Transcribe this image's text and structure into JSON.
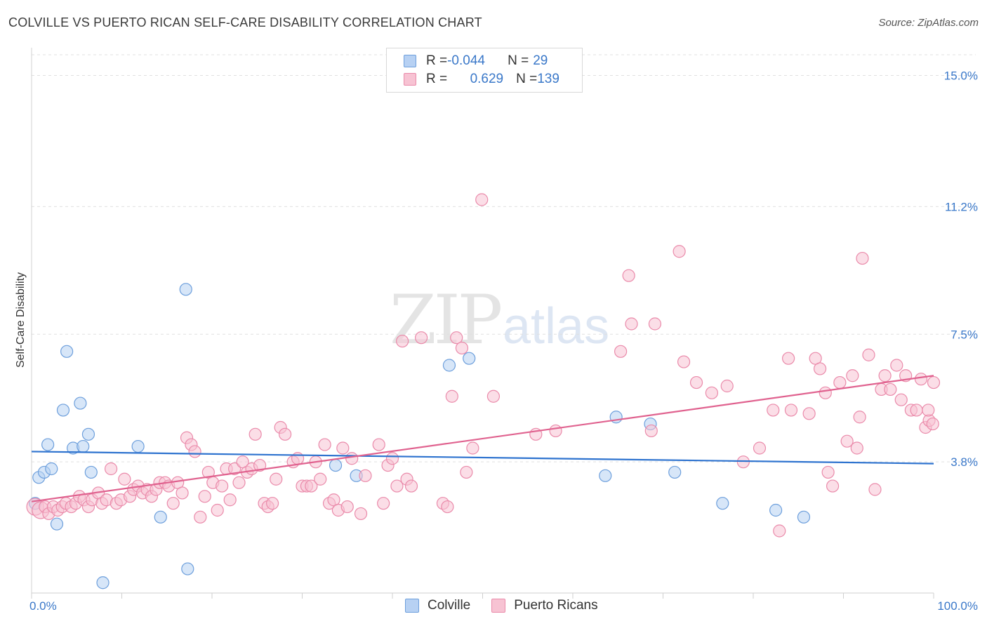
{
  "title": "COLVILLE VS PUERTO RICAN SELF-CARE DISABILITY CORRELATION CHART",
  "source": "Source: ZipAtlas.com",
  "watermark": {
    "zip": "ZIP",
    "atlas": "atlas"
  },
  "legend": {
    "rows": [
      {
        "r_label": "R = ",
        "r_value": "-0.044",
        "n_label": "N = ",
        "n_value": "29"
      },
      {
        "r_label": "R = ",
        "r_value": "0.629",
        "n_label": "N = ",
        "n_value": "139"
      }
    ]
  },
  "bottom_legend": {
    "colville": "Colville",
    "puerto_ricans": "Puerto Ricans"
  },
  "colors": {
    "colville_fill": "#b7d1f3",
    "colville_stroke": "#6d9fdc",
    "colville_line": "#2e73cf",
    "pr_fill": "#f7c3d3",
    "pr_stroke": "#ea8aaa",
    "pr_line": "#e0628f",
    "grid": "#e0e0e0",
    "tick_text": "#3a78c9"
  },
  "chart_data": {
    "type": "scatter",
    "title": "COLVILLE VS PUERTO RICAN SELF-CARE DISABILITY CORRELATION CHART",
    "xlabel": "",
    "ylabel": "Self-Care Disability",
    "xlim": [
      0,
      100
    ],
    "ylim": [
      0,
      15.6
    ],
    "x_tick_labels": [
      "0.0%",
      "100.0%"
    ],
    "y_ticks": [
      3.8,
      7.5,
      11.2,
      15.0
    ],
    "y_tick_labels": [
      "3.8%",
      "7.5%",
      "11.2%",
      "15.0%"
    ],
    "grid": true,
    "legend_position": "top-center",
    "series": [
      {
        "name": "Colville",
        "r": -0.044,
        "n": 29,
        "trend": [
          [
            0,
            4.1
          ],
          [
            100,
            3.75
          ]
        ],
        "points": [
          [
            0.4,
            2.6
          ],
          [
            0.8,
            3.35
          ],
          [
            1.4,
            3.5
          ],
          [
            1.8,
            4.3
          ],
          [
            2.2,
            3.6
          ],
          [
            2.8,
            2.0
          ],
          [
            3.5,
            5.3
          ],
          [
            3.9,
            7.0
          ],
          [
            4.6,
            4.2
          ],
          [
            5.4,
            5.5
          ],
          [
            5.7,
            4.25
          ],
          [
            6.3,
            4.6
          ],
          [
            6.6,
            3.5
          ],
          [
            7.9,
            0.3
          ],
          [
            11.8,
            4.25
          ],
          [
            14.3,
            2.2
          ],
          [
            17.1,
            8.8
          ],
          [
            17.3,
            0.7
          ],
          [
            33.7,
            3.7
          ],
          [
            36.0,
            3.4
          ],
          [
            46.3,
            6.6
          ],
          [
            48.5,
            6.8
          ],
          [
            64.8,
            5.1
          ],
          [
            63.6,
            3.4
          ],
          [
            68.6,
            4.9
          ],
          [
            71.3,
            3.5
          ],
          [
            76.6,
            2.6
          ],
          [
            82.5,
            2.4
          ],
          [
            85.6,
            2.2
          ]
        ]
      },
      {
        "name": "Puerto Ricans",
        "r": 0.629,
        "n": 139,
        "trend": [
          [
            0,
            2.65
          ],
          [
            100,
            6.3
          ]
        ],
        "points": [
          [
            0.4,
            2.5
          ],
          [
            1.0,
            2.4
          ],
          [
            1.5,
            2.5
          ],
          [
            1.9,
            2.3
          ],
          [
            2.4,
            2.5
          ],
          [
            2.9,
            2.4
          ],
          [
            3.4,
            2.5
          ],
          [
            3.8,
            2.6
          ],
          [
            4.4,
            2.5
          ],
          [
            4.9,
            2.6
          ],
          [
            5.3,
            2.8
          ],
          [
            5.8,
            2.7
          ],
          [
            6.3,
            2.5
          ],
          [
            6.7,
            2.7
          ],
          [
            7.4,
            2.9
          ],
          [
            7.8,
            2.6
          ],
          [
            8.3,
            2.7
          ],
          [
            8.8,
            3.6
          ],
          [
            9.4,
            2.6
          ],
          [
            9.9,
            2.7
          ],
          [
            10.3,
            3.3
          ],
          [
            10.9,
            2.8
          ],
          [
            11.3,
            3.0
          ],
          [
            11.8,
            3.1
          ],
          [
            12.3,
            2.9
          ],
          [
            12.8,
            3.0
          ],
          [
            13.3,
            2.8
          ],
          [
            13.8,
            3.0
          ],
          [
            14.2,
            3.2
          ],
          [
            14.8,
            3.2
          ],
          [
            15.2,
            3.1
          ],
          [
            15.7,
            2.6
          ],
          [
            16.2,
            3.2
          ],
          [
            16.7,
            2.9
          ],
          [
            17.2,
            4.5
          ],
          [
            17.7,
            4.3
          ],
          [
            18.1,
            4.1
          ],
          [
            18.7,
            2.2
          ],
          [
            19.2,
            2.8
          ],
          [
            19.6,
            3.5
          ],
          [
            20.1,
            3.2
          ],
          [
            20.6,
            2.4
          ],
          [
            21.1,
            3.1
          ],
          [
            21.6,
            3.6
          ],
          [
            22.0,
            2.7
          ],
          [
            22.5,
            3.6
          ],
          [
            23.0,
            3.2
          ],
          [
            23.4,
            3.8
          ],
          [
            23.9,
            3.5
          ],
          [
            24.4,
            3.6
          ],
          [
            24.8,
            4.6
          ],
          [
            25.3,
            3.7
          ],
          [
            25.8,
            2.6
          ],
          [
            26.2,
            2.5
          ],
          [
            26.7,
            2.6
          ],
          [
            27.1,
            3.3
          ],
          [
            27.6,
            4.8
          ],
          [
            28.1,
            4.6
          ],
          [
            29.0,
            3.8
          ],
          [
            29.5,
            3.9
          ],
          [
            30.0,
            3.1
          ],
          [
            30.5,
            3.1
          ],
          [
            31.0,
            3.1
          ],
          [
            31.5,
            3.8
          ],
          [
            32.0,
            3.3
          ],
          [
            32.5,
            4.3
          ],
          [
            33.0,
            2.6
          ],
          [
            33.5,
            2.7
          ],
          [
            34.0,
            2.4
          ],
          [
            34.5,
            4.2
          ],
          [
            35.0,
            2.5
          ],
          [
            35.5,
            3.9
          ],
          [
            36.5,
            2.3
          ],
          [
            37.0,
            3.4
          ],
          [
            38.5,
            4.3
          ],
          [
            39.0,
            2.6
          ],
          [
            39.5,
            3.7
          ],
          [
            40.0,
            3.9
          ],
          [
            40.5,
            3.1
          ],
          [
            41.1,
            7.3
          ],
          [
            41.6,
            3.3
          ],
          [
            42.1,
            3.1
          ],
          [
            43.2,
            7.4
          ],
          [
            45.6,
            2.6
          ],
          [
            46.1,
            2.5
          ],
          [
            46.6,
            5.7
          ],
          [
            47.1,
            7.4
          ],
          [
            47.7,
            7.1
          ],
          [
            48.2,
            3.5
          ],
          [
            48.9,
            4.2
          ],
          [
            49.9,
            11.4
          ],
          [
            51.2,
            5.7
          ],
          [
            55.9,
            4.6
          ],
          [
            58.1,
            4.7
          ],
          [
            65.3,
            7.0
          ],
          [
            66.2,
            9.2
          ],
          [
            66.5,
            7.8
          ],
          [
            68.7,
            4.7
          ],
          [
            69.1,
            7.8
          ],
          [
            71.8,
            9.9
          ],
          [
            72.3,
            6.7
          ],
          [
            73.7,
            6.1
          ],
          [
            75.4,
            5.8
          ],
          [
            77.1,
            6.0
          ],
          [
            78.9,
            3.8
          ],
          [
            80.7,
            4.2
          ],
          [
            82.2,
            5.3
          ],
          [
            82.9,
            1.8
          ],
          [
            83.9,
            6.8
          ],
          [
            84.2,
            5.3
          ],
          [
            86.2,
            5.2
          ],
          [
            86.9,
            6.8
          ],
          [
            87.4,
            6.5
          ],
          [
            88.0,
            5.8
          ],
          [
            88.3,
            3.5
          ],
          [
            88.8,
            3.1
          ],
          [
            89.6,
            6.1
          ],
          [
            90.4,
            4.4
          ],
          [
            91.0,
            6.3
          ],
          [
            91.5,
            4.2
          ],
          [
            91.8,
            5.1
          ],
          [
            92.1,
            9.7
          ],
          [
            92.8,
            6.9
          ],
          [
            93.5,
            3.0
          ],
          [
            94.2,
            5.9
          ],
          [
            94.6,
            6.3
          ],
          [
            95.2,
            5.9
          ],
          [
            95.9,
            6.6
          ],
          [
            96.4,
            5.6
          ],
          [
            96.9,
            6.3
          ],
          [
            97.5,
            5.3
          ],
          [
            98.1,
            5.3
          ],
          [
            98.6,
            6.2
          ],
          [
            99.1,
            4.8
          ],
          [
            99.5,
            5.0
          ],
          [
            99.9,
            4.9
          ],
          [
            100.0,
            6.1
          ],
          [
            99.4,
            5.3
          ]
        ]
      }
    ]
  }
}
